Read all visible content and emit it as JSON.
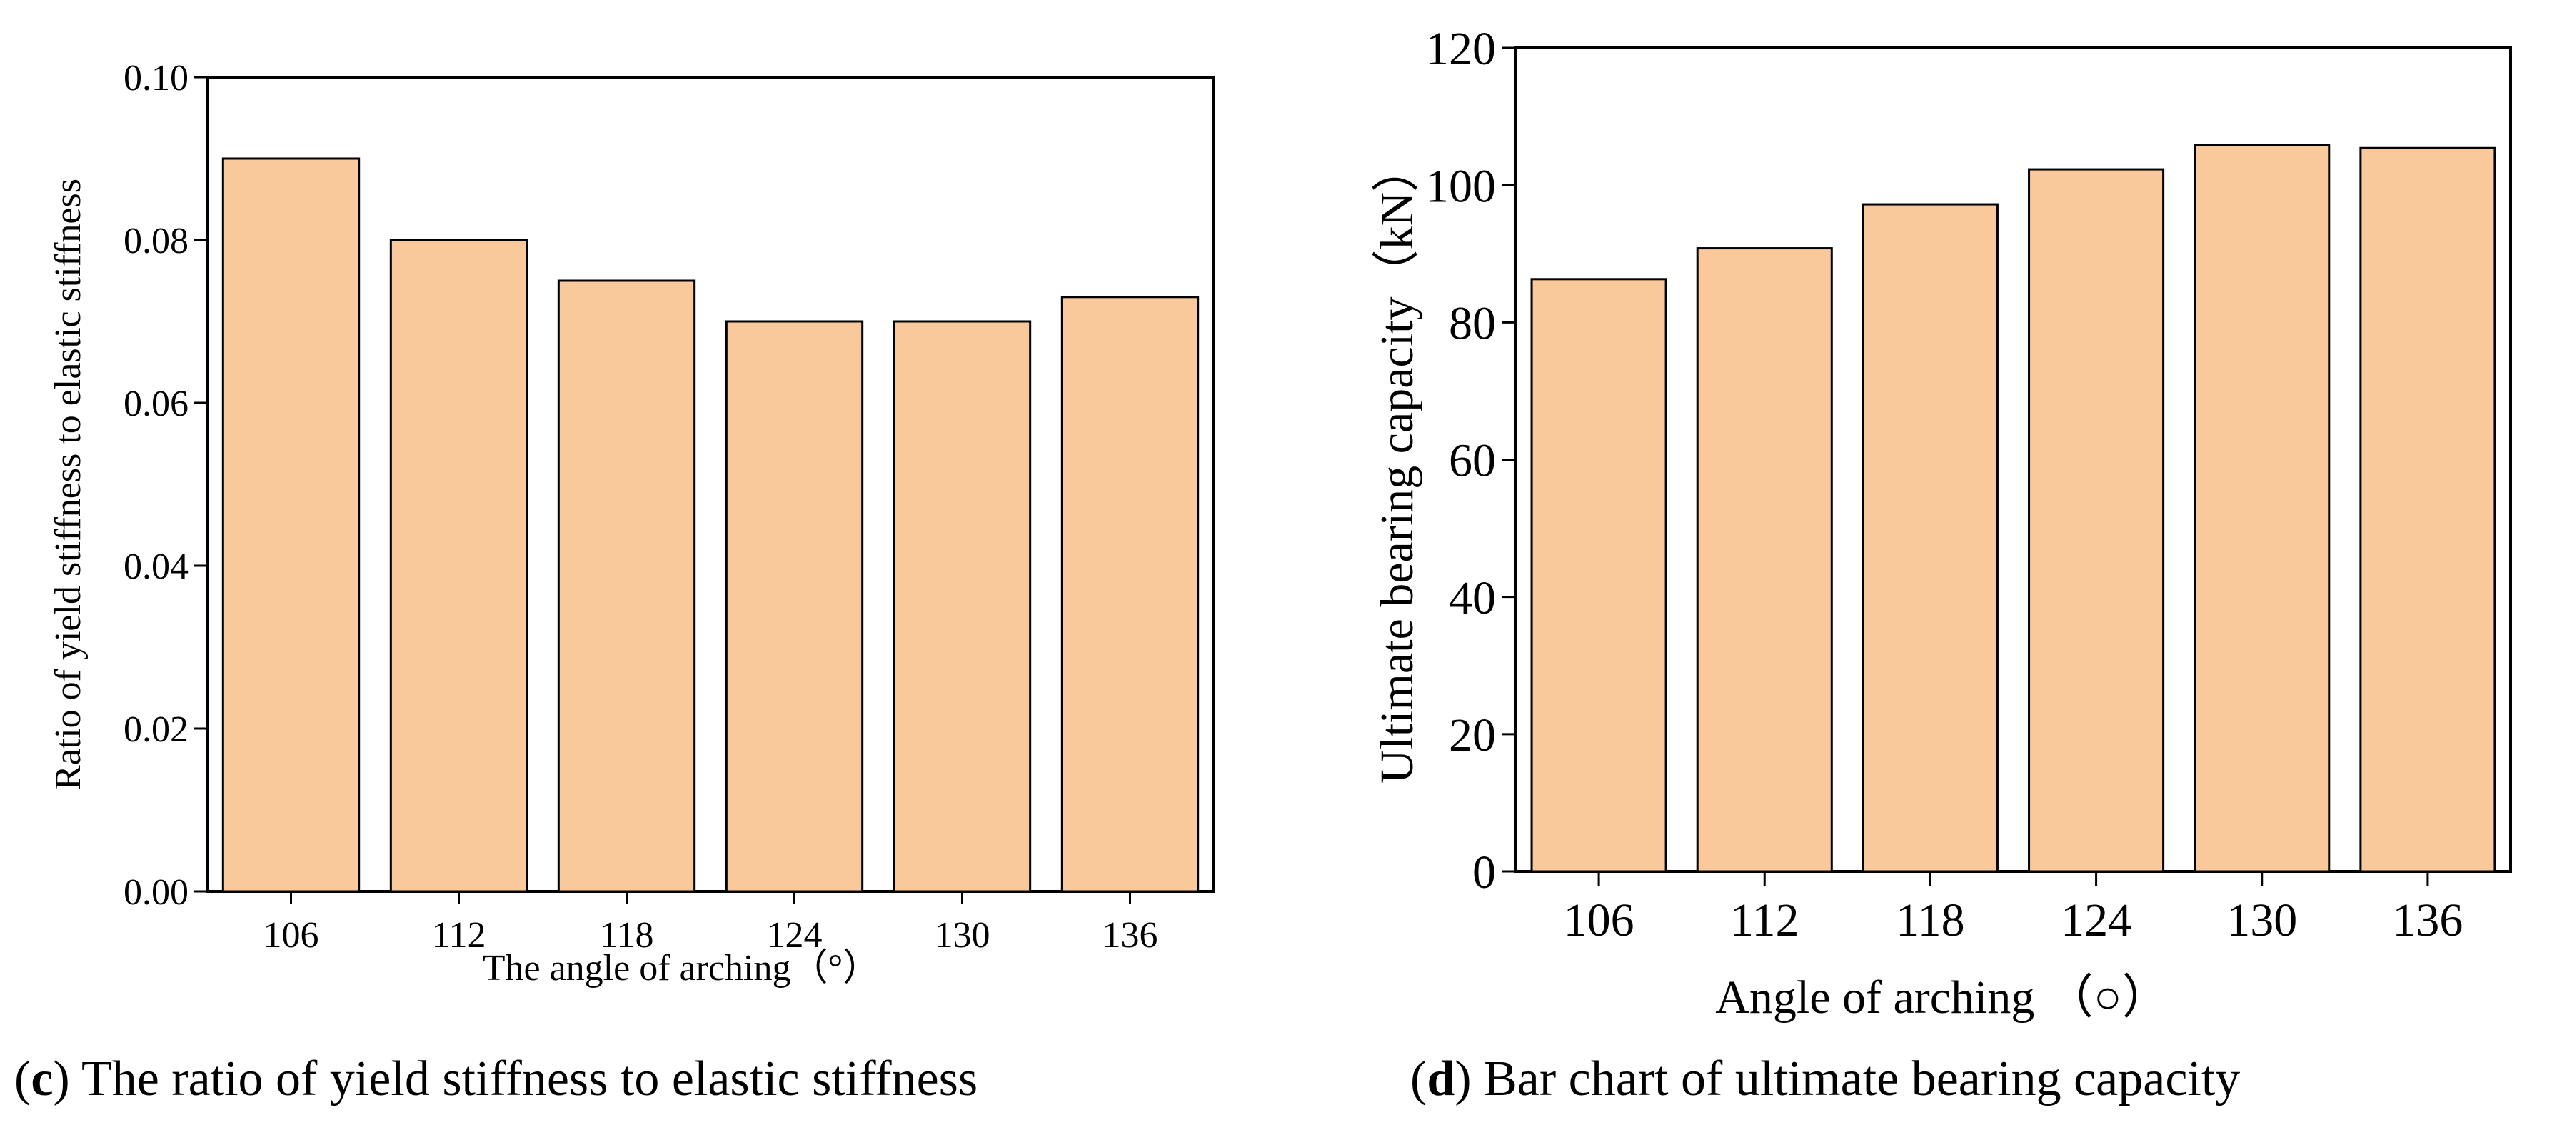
{
  "chart_data": [
    {
      "type": "bar",
      "panel_letter": "c",
      "caption": "The ratio of yield stiffness to elastic stiffness",
      "title": "",
      "xlabel": "The angle of arching（°）",
      "ylabel": "Ratio of yield stiffness to elastic stiffness",
      "categories": [
        "106",
        "112",
        "118",
        "124",
        "130",
        "136"
      ],
      "values": [
        0.09,
        0.08,
        0.075,
        0.07,
        0.07,
        0.073
      ],
      "ylim": [
        0,
        0.1
      ],
      "yticks": [
        "0.00",
        "0.02",
        "0.04",
        "0.06",
        "0.08",
        "0.10"
      ],
      "bar_color": "#F9C89B",
      "grid": false
    },
    {
      "type": "bar",
      "panel_letter": "d",
      "caption": "Bar chart of ultimate bearing capacity",
      "title": "",
      "xlabel": "Angle of arching （○）",
      "ylabel": "Ultimate bearing capacity（kN）",
      "categories": [
        "106",
        "112",
        "118",
        "124",
        "130",
        "136"
      ],
      "values": [
        86.3,
        90.8,
        97.2,
        102.3,
        105.8,
        105.4
      ],
      "ylim": [
        0,
        120
      ],
      "yticks": [
        "0",
        "20",
        "40",
        "60",
        "80",
        "100",
        "120"
      ],
      "bar_color": "#F9C89B",
      "grid": false
    }
  ]
}
